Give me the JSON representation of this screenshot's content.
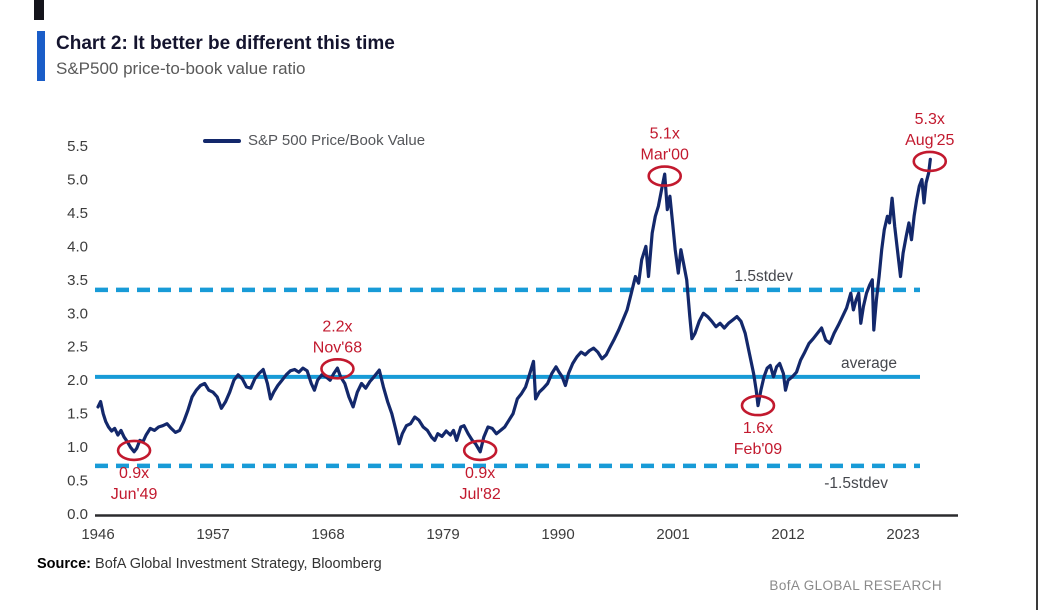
{
  "header": {
    "title": "Chart 2: It better be different this time",
    "subtitle": "S&P500 price-to-book value ratio"
  },
  "legend": {
    "label": "S&P 500 Price/Book Value"
  },
  "footer": {
    "source_label": "Source:",
    "source_text": " BofA Global Investment Strategy, Bloomberg",
    "brand": "BofA GLOBAL RESEARCH"
  },
  "colors": {
    "line_navy": "#13286b",
    "reference_cyan": "#189bd7",
    "annotation_red": "#c2192e",
    "accent_blue": "#1a5dc8",
    "axis_dark": "#2b2b2e",
    "tick_text": "#3c3c3c",
    "ref_label_text": "#45474d"
  },
  "chart_data": {
    "type": "line",
    "title": "S&P500 price-to-book value ratio",
    "xlabel": "",
    "ylabel": "",
    "xlim": [
      1946,
      2028.25
    ],
    "ylim": [
      0.0,
      5.5
    ],
    "grid": false,
    "legend_position": "top-inside-left",
    "x_ticks": [
      1946,
      1957,
      1968,
      1979,
      1990,
      2001,
      2012,
      2023
    ],
    "y_tick_labels": [
      "0.0",
      "0.5",
      "1.0",
      "1.5",
      "2.0",
      "2.5",
      "3.0",
      "3.5",
      "4.0",
      "4.5",
      "5.0",
      "5.5"
    ],
    "reference_lines": [
      {
        "label": "1.5stdev",
        "value": 3.35,
        "style": "dashed"
      },
      {
        "label": "average",
        "value": 2.05,
        "style": "solid"
      },
      {
        "label": "-1.5stdev",
        "value": 0.72,
        "style": "dashed"
      }
    ],
    "annotations": [
      {
        "label_value": "0.9x",
        "label_date": "Jun'49",
        "year": 1949.45,
        "value": 0.95,
        "label_side": "below"
      },
      {
        "label_value": "2.2x",
        "label_date": "Nov'68",
        "year": 1968.9,
        "value": 2.17,
        "label_side": "above"
      },
      {
        "label_value": "0.9x",
        "label_date": "Jul'82",
        "year": 1982.55,
        "value": 0.95,
        "label_side": "below"
      },
      {
        "label_value": "5.1x",
        "label_date": "Mar'00",
        "year": 2000.2,
        "value": 5.05,
        "label_side": "above"
      },
      {
        "label_value": "1.6x",
        "label_date": "Feb'09",
        "year": 2009.12,
        "value": 1.62,
        "label_side": "below"
      },
      {
        "label_value": "5.3x",
        "label_date": "Aug'25",
        "year": 2025.55,
        "value": 5.27,
        "label_side": "above"
      }
    ],
    "series": [
      {
        "name": "S&P 500 Price/Book Value",
        "points": [
          [
            1946.0,
            1.6
          ],
          [
            1946.25,
            1.68
          ],
          [
            1946.5,
            1.5
          ],
          [
            1946.75,
            1.38
          ],
          [
            1947.0,
            1.3
          ],
          [
            1947.3,
            1.24
          ],
          [
            1947.6,
            1.28
          ],
          [
            1947.9,
            1.18
          ],
          [
            1948.2,
            1.25
          ],
          [
            1948.5,
            1.15
          ],
          [
            1948.8,
            1.08
          ],
          [
            1949.1,
            1.0
          ],
          [
            1949.45,
            0.93
          ],
          [
            1949.7,
            0.98
          ],
          [
            1950.0,
            1.1
          ],
          [
            1950.3,
            1.08
          ],
          [
            1950.6,
            1.18
          ],
          [
            1951.0,
            1.28
          ],
          [
            1951.4,
            1.25
          ],
          [
            1951.8,
            1.3
          ],
          [
            1952.2,
            1.32
          ],
          [
            1952.6,
            1.35
          ],
          [
            1953.0,
            1.28
          ],
          [
            1953.4,
            1.22
          ],
          [
            1953.8,
            1.25
          ],
          [
            1954.2,
            1.38
          ],
          [
            1954.6,
            1.55
          ],
          [
            1955.0,
            1.75
          ],
          [
            1955.4,
            1.85
          ],
          [
            1955.8,
            1.92
          ],
          [
            1956.2,
            1.95
          ],
          [
            1956.6,
            1.85
          ],
          [
            1957.0,
            1.82
          ],
          [
            1957.4,
            1.75
          ],
          [
            1957.8,
            1.58
          ],
          [
            1958.2,
            1.68
          ],
          [
            1958.6,
            1.82
          ],
          [
            1959.0,
            2.0
          ],
          [
            1959.4,
            2.08
          ],
          [
            1959.8,
            2.02
          ],
          [
            1960.2,
            1.9
          ],
          [
            1960.6,
            1.88
          ],
          [
            1961.0,
            2.02
          ],
          [
            1961.4,
            2.1
          ],
          [
            1961.8,
            2.16
          ],
          [
            1962.2,
            1.95
          ],
          [
            1962.5,
            1.72
          ],
          [
            1962.8,
            1.82
          ],
          [
            1963.2,
            1.92
          ],
          [
            1963.6,
            2.0
          ],
          [
            1964.0,
            2.08
          ],
          [
            1964.4,
            2.14
          ],
          [
            1964.8,
            2.16
          ],
          [
            1965.2,
            2.12
          ],
          [
            1965.6,
            2.18
          ],
          [
            1966.0,
            2.14
          ],
          [
            1966.4,
            1.95
          ],
          [
            1966.7,
            1.85
          ],
          [
            1967.0,
            2.0
          ],
          [
            1967.4,
            2.08
          ],
          [
            1967.8,
            2.05
          ],
          [
            1968.2,
            2.0
          ],
          [
            1968.55,
            2.1
          ],
          [
            1968.9,
            2.18
          ],
          [
            1969.2,
            2.05
          ],
          [
            1969.6,
            1.95
          ],
          [
            1970.0,
            1.75
          ],
          [
            1970.4,
            1.6
          ],
          [
            1970.8,
            1.82
          ],
          [
            1971.2,
            1.95
          ],
          [
            1971.6,
            1.88
          ],
          [
            1972.0,
            1.98
          ],
          [
            1972.4,
            2.05
          ],
          [
            1972.9,
            2.15
          ],
          [
            1973.3,
            1.9
          ],
          [
            1973.7,
            1.68
          ],
          [
            1974.1,
            1.5
          ],
          [
            1974.5,
            1.25
          ],
          [
            1974.8,
            1.05
          ],
          [
            1975.1,
            1.2
          ],
          [
            1975.5,
            1.32
          ],
          [
            1975.9,
            1.35
          ],
          [
            1976.3,
            1.45
          ],
          [
            1976.7,
            1.4
          ],
          [
            1977.1,
            1.3
          ],
          [
            1977.5,
            1.25
          ],
          [
            1977.9,
            1.15
          ],
          [
            1978.2,
            1.1
          ],
          [
            1978.5,
            1.2
          ],
          [
            1978.9,
            1.16
          ],
          [
            1979.3,
            1.24
          ],
          [
            1979.7,
            1.18
          ],
          [
            1980.0,
            1.25
          ],
          [
            1980.3,
            1.1
          ],
          [
            1980.7,
            1.3
          ],
          [
            1981.0,
            1.32
          ],
          [
            1981.4,
            1.2
          ],
          [
            1981.8,
            1.1
          ],
          [
            1982.1,
            1.05
          ],
          [
            1982.55,
            0.93
          ],
          [
            1982.9,
            1.15
          ],
          [
            1983.3,
            1.3
          ],
          [
            1983.7,
            1.28
          ],
          [
            1984.1,
            1.2
          ],
          [
            1984.5,
            1.25
          ],
          [
            1984.9,
            1.3
          ],
          [
            1985.3,
            1.4
          ],
          [
            1985.7,
            1.5
          ],
          [
            1986.1,
            1.72
          ],
          [
            1986.5,
            1.8
          ],
          [
            1986.9,
            1.9
          ],
          [
            1987.3,
            2.1
          ],
          [
            1987.65,
            2.28
          ],
          [
            1987.85,
            1.72
          ],
          [
            1988.2,
            1.82
          ],
          [
            1988.6,
            1.88
          ],
          [
            1989.0,
            1.95
          ],
          [
            1989.4,
            2.1
          ],
          [
            1989.8,
            2.2
          ],
          [
            1990.1,
            2.12
          ],
          [
            1990.4,
            2.05
          ],
          [
            1990.7,
            1.92
          ],
          [
            1991.0,
            2.1
          ],
          [
            1991.4,
            2.25
          ],
          [
            1991.8,
            2.35
          ],
          [
            1992.2,
            2.42
          ],
          [
            1992.6,
            2.38
          ],
          [
            1993.0,
            2.44
          ],
          [
            1993.4,
            2.48
          ],
          [
            1993.8,
            2.42
          ],
          [
            1994.2,
            2.32
          ],
          [
            1994.6,
            2.38
          ],
          [
            1995.0,
            2.5
          ],
          [
            1995.4,
            2.62
          ],
          [
            1995.8,
            2.75
          ],
          [
            1996.2,
            2.9
          ],
          [
            1996.6,
            3.05
          ],
          [
            1997.0,
            3.3
          ],
          [
            1997.4,
            3.55
          ],
          [
            1997.7,
            3.45
          ],
          [
            1998.0,
            3.8
          ],
          [
            1998.4,
            4.0
          ],
          [
            1998.65,
            3.55
          ],
          [
            1999.0,
            4.2
          ],
          [
            1999.3,
            4.45
          ],
          [
            1999.6,
            4.6
          ],
          [
            1999.9,
            4.85
          ],
          [
            2000.2,
            5.08
          ],
          [
            2000.45,
            4.55
          ],
          [
            2000.7,
            4.75
          ],
          [
            2000.95,
            4.35
          ],
          [
            2001.2,
            3.95
          ],
          [
            2001.5,
            3.6
          ],
          [
            2001.75,
            3.95
          ],
          [
            2002.0,
            3.75
          ],
          [
            2002.3,
            3.5
          ],
          [
            2002.6,
            2.95
          ],
          [
            2002.8,
            2.62
          ],
          [
            2003.1,
            2.7
          ],
          [
            2003.5,
            2.88
          ],
          [
            2003.9,
            3.0
          ],
          [
            2004.3,
            2.95
          ],
          [
            2004.7,
            2.88
          ],
          [
            2005.1,
            2.8
          ],
          [
            2005.5,
            2.85
          ],
          [
            2005.9,
            2.78
          ],
          [
            2006.3,
            2.85
          ],
          [
            2006.7,
            2.9
          ],
          [
            2007.1,
            2.95
          ],
          [
            2007.5,
            2.88
          ],
          [
            2007.9,
            2.7
          ],
          [
            2008.3,
            2.4
          ],
          [
            2008.7,
            2.1
          ],
          [
            2008.95,
            1.85
          ],
          [
            2009.12,
            1.62
          ],
          [
            2009.4,
            1.85
          ],
          [
            2009.7,
            2.05
          ],
          [
            2010.0,
            2.18
          ],
          [
            2010.3,
            2.22
          ],
          [
            2010.6,
            2.05
          ],
          [
            2010.9,
            2.2
          ],
          [
            2011.2,
            2.25
          ],
          [
            2011.55,
            2.1
          ],
          [
            2011.75,
            1.85
          ],
          [
            2012.0,
            2.0
          ],
          [
            2012.4,
            2.05
          ],
          [
            2012.8,
            2.12
          ],
          [
            2013.2,
            2.3
          ],
          [
            2013.6,
            2.42
          ],
          [
            2014.0,
            2.55
          ],
          [
            2014.4,
            2.62
          ],
          [
            2014.8,
            2.7
          ],
          [
            2015.2,
            2.78
          ],
          [
            2015.6,
            2.6
          ],
          [
            2016.0,
            2.55
          ],
          [
            2016.4,
            2.7
          ],
          [
            2016.8,
            2.82
          ],
          [
            2017.2,
            2.95
          ],
          [
            2017.6,
            3.08
          ],
          [
            2018.0,
            3.3
          ],
          [
            2018.25,
            3.05
          ],
          [
            2018.5,
            3.2
          ],
          [
            2018.75,
            3.3
          ],
          [
            2018.95,
            2.85
          ],
          [
            2019.2,
            3.1
          ],
          [
            2019.5,
            3.3
          ],
          [
            2019.8,
            3.42
          ],
          [
            2020.05,
            3.5
          ],
          [
            2020.2,
            2.75
          ],
          [
            2020.45,
            3.2
          ],
          [
            2020.7,
            3.55
          ],
          [
            2020.95,
            3.95
          ],
          [
            2021.2,
            4.25
          ],
          [
            2021.5,
            4.45
          ],
          [
            2021.7,
            4.35
          ],
          [
            2021.95,
            4.72
          ],
          [
            2022.2,
            4.3
          ],
          [
            2022.45,
            3.95
          ],
          [
            2022.75,
            3.55
          ],
          [
            2023.0,
            3.9
          ],
          [
            2023.3,
            4.15
          ],
          [
            2023.55,
            4.35
          ],
          [
            2023.8,
            4.1
          ],
          [
            2024.05,
            4.45
          ],
          [
            2024.3,
            4.7
          ],
          [
            2024.55,
            4.9
          ],
          [
            2024.8,
            5.0
          ],
          [
            2025.0,
            4.65
          ],
          [
            2025.2,
            4.95
          ],
          [
            2025.45,
            5.1
          ],
          [
            2025.6,
            5.3
          ]
        ]
      }
    ]
  }
}
